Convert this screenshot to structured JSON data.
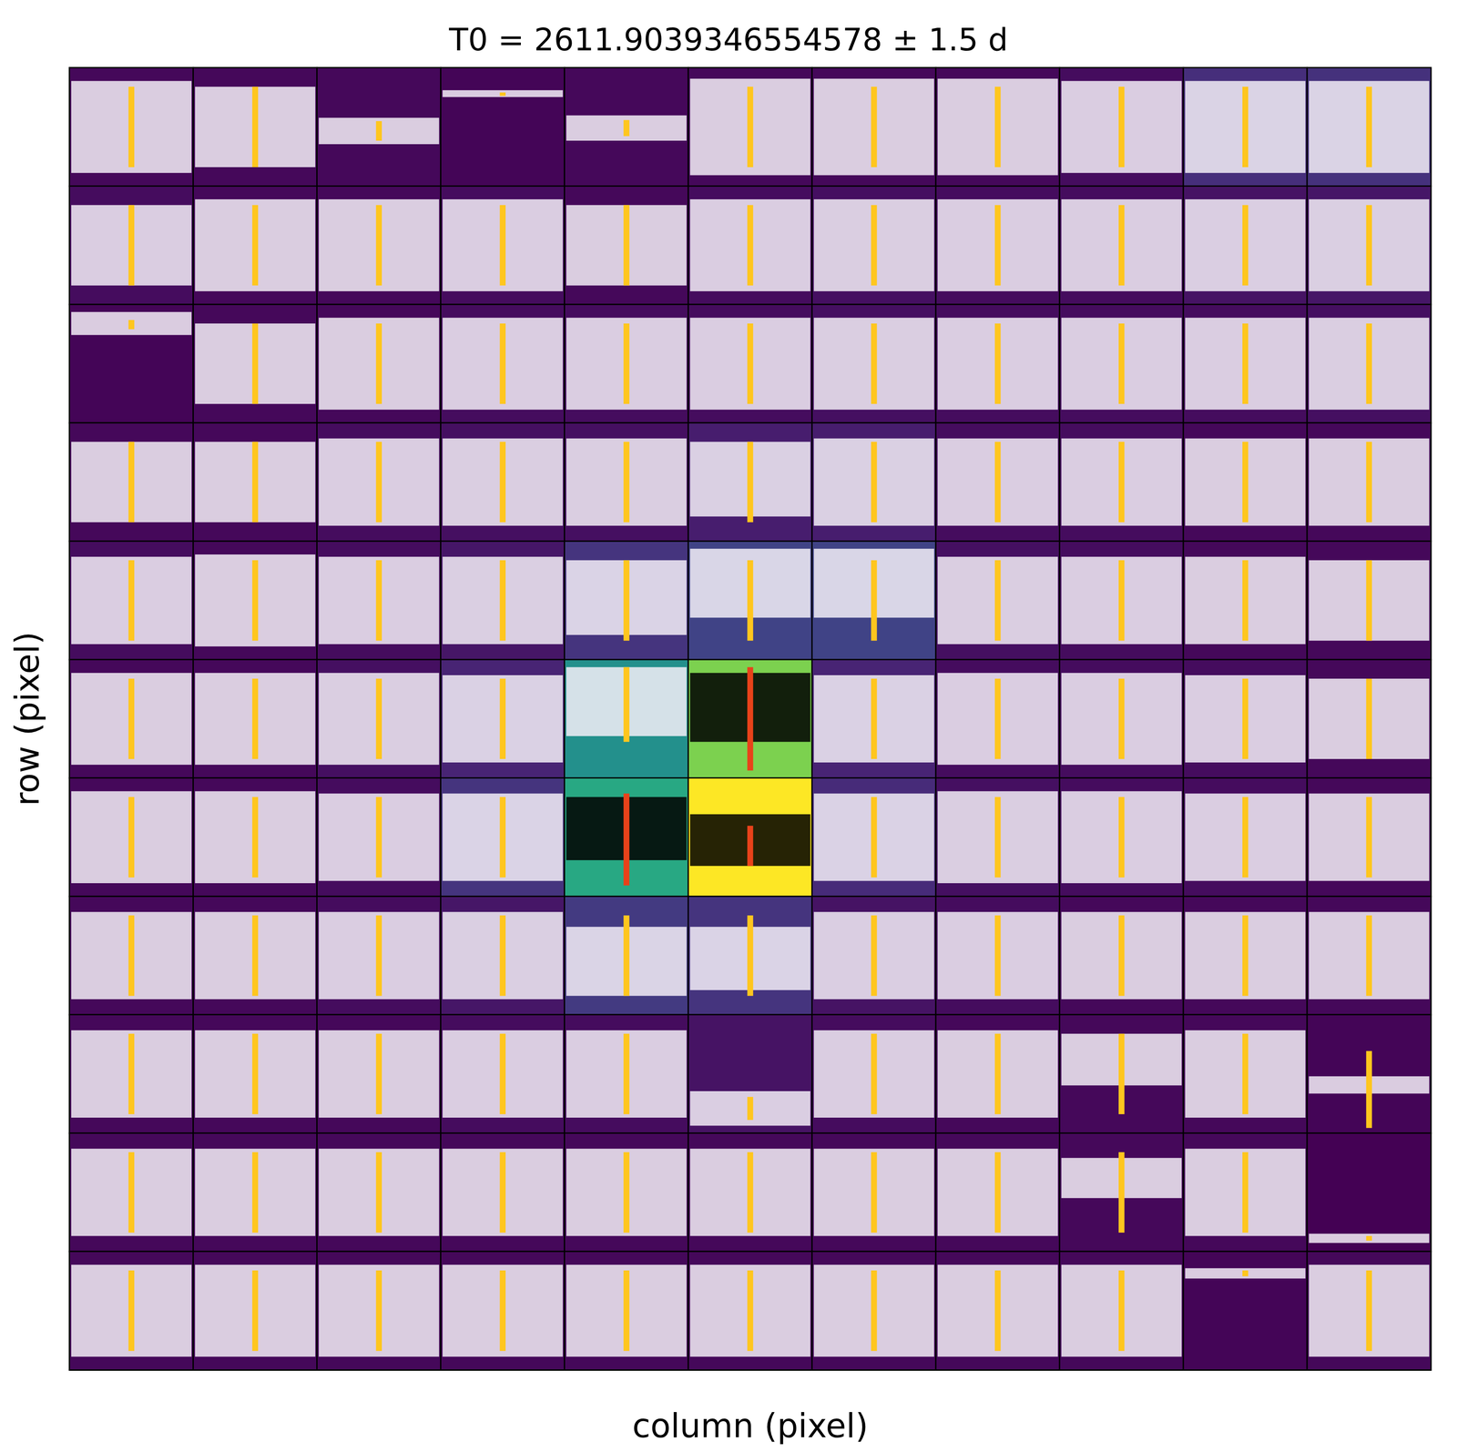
{
  "chart_data": {
    "type": "pixel_lightcurves",
    "title": "T0 = 2611.9039346554578 ± 1.5 d",
    "xlabel": "column (pixel)",
    "ylabel": "row (pixel)",
    "tick_labels": false,
    "t0": 2611.9039346554578,
    "t0_window": 1.5,
    "xlim": [
      2580.9,
      2642.9
    ],
    "ylim": [
      0,
      1
    ],
    "flux_range": [
      0,
      1
    ],
    "pixel_flux": [
      [
        0.02,
        0.02,
        0.02,
        0.01,
        0.02,
        0.02,
        0.02,
        0.02,
        0.03,
        0.13,
        0.14
      ],
      [
        0.03,
        0.02,
        0.02,
        0.03,
        0.02,
        0.03,
        0.04,
        0.03,
        0.03,
        0.05,
        0.06
      ],
      [
        0.01,
        0.02,
        0.02,
        0.03,
        0.03,
        0.03,
        0.04,
        0.03,
        0.03,
        0.03,
        0.04
      ],
      [
        0.02,
        0.02,
        0.03,
        0.04,
        0.04,
        0.08,
        0.08,
        0.03,
        0.03,
        0.02,
        0.02
      ],
      [
        0.03,
        0.02,
        0.03,
        0.06,
        0.15,
        0.2,
        0.2,
        0.04,
        0.03,
        0.02,
        0.02
      ],
      [
        0.02,
        0.02,
        0.04,
        0.1,
        0.5,
        0.8,
        0.1,
        0.03,
        0.03,
        0.03,
        0.02
      ],
      [
        0.02,
        0.02,
        0.03,
        0.15,
        0.6,
        1.0,
        0.12,
        0.04,
        0.03,
        0.03,
        0.02
      ],
      [
        0.02,
        0.02,
        0.03,
        0.06,
        0.17,
        0.15,
        0.05,
        0.03,
        0.02,
        0.02,
        0.02
      ],
      [
        0.02,
        0.02,
        0.02,
        0.03,
        0.03,
        0.05,
        0.03,
        0.02,
        0.02,
        0.02,
        0.01
      ],
      [
        0.02,
        0.02,
        0.02,
        0.02,
        0.02,
        0.02,
        0.02,
        0.02,
        0.02,
        0.02,
        0.0
      ],
      [
        0.02,
        0.02,
        0.02,
        0.02,
        0.02,
        0.02,
        0.02,
        0.02,
        0.02,
        0.01,
        0.02
      ]
    ],
    "aperture": {
      "cells": [
        [
          5,
          5
        ],
        [
          6,
          4
        ],
        [
          6,
          5
        ]
      ],
      "colors": [
        "#000000",
        "#e8421a"
      ]
    },
    "series": [
      {
        "color": "#f4f0f8",
        "values": [
          [
            [
              0.1,
              0.9
            ],
            [
              0.15,
              0.85
            ],
            [
              0.35,
              0.58
            ],
            [
              0.76,
              0.82
            ],
            [
              0.38,
              0.6
            ],
            [
              0.08,
              0.92
            ],
            [
              0.08,
              0.92
            ],
            [
              0.08,
              0.92
            ],
            [
              0.1,
              0.9
            ],
            [
              0.1,
              0.9
            ],
            [
              0.1,
              0.9
            ]
          ],
          [
            [
              0.15,
              0.85
            ],
            [
              0.1,
              0.9
            ],
            [
              0.1,
              0.9
            ],
            [
              0.1,
              0.9
            ],
            [
              0.15,
              0.85
            ],
            [
              0.1,
              0.9
            ],
            [
              0.1,
              0.9
            ],
            [
              0.1,
              0.9
            ],
            [
              0.1,
              0.9
            ],
            [
              0.1,
              0.9
            ],
            [
              0.1,
              0.9
            ]
          ],
          [
            [
              0.75,
              0.95
            ],
            [
              0.15,
              0.85
            ],
            [
              0.1,
              0.9
            ],
            [
              0.1,
              0.9
            ],
            [
              0.1,
              0.9
            ],
            [
              0.1,
              0.9
            ],
            [
              0.1,
              0.9
            ],
            [
              0.1,
              0.9
            ],
            [
              0.1,
              0.9
            ],
            [
              0.1,
              0.9
            ],
            [
              0.1,
              0.9
            ]
          ],
          [
            [
              0.15,
              0.85
            ],
            [
              0.15,
              0.85
            ],
            [
              0.12,
              0.88
            ],
            [
              0.12,
              0.88
            ],
            [
              0.12,
              0.88
            ],
            [
              0.2,
              0.85
            ],
            [
              0.12,
              0.88
            ],
            [
              0.12,
              0.88
            ],
            [
              0.12,
              0.88
            ],
            [
              0.12,
              0.88
            ],
            [
              0.12,
              0.88
            ]
          ],
          [
            [
              0.12,
              0.88
            ],
            [
              0.1,
              0.9
            ],
            [
              0.12,
              0.88
            ],
            [
              0.12,
              0.88
            ],
            [
              0.2,
              0.85
            ],
            [
              0.35,
              0.95
            ],
            [
              0.35,
              0.95
            ],
            [
              0.12,
              0.88
            ],
            [
              0.12,
              0.88
            ],
            [
              0.12,
              0.88
            ],
            [
              0.15,
              0.85
            ]
          ],
          [
            [
              0.1,
              0.9
            ],
            [
              0.1,
              0.9
            ],
            [
              0.1,
              0.9
            ],
            [
              0.12,
              0.88
            ],
            [
              0.35,
              0.95
            ],
            [
              0.3,
              0.9
            ],
            [
              0.12,
              0.88
            ],
            [
              0.1,
              0.9
            ],
            [
              0.1,
              0.9
            ],
            [
              0.12,
              0.88
            ],
            [
              0.15,
              0.85
            ]
          ],
          [
            [
              0.1,
              0.9
            ],
            [
              0.1,
              0.9
            ],
            [
              0.12,
              0.88
            ],
            [
              0.12,
              0.88
            ],
            [
              0.3,
              0.85
            ],
            [
              0.25,
              0.7
            ],
            [
              0.12,
              0.88
            ],
            [
              0.1,
              0.9
            ],
            [
              0.1,
              0.9
            ],
            [
              0.12,
              0.88
            ],
            [
              0.12,
              0.88
            ]
          ],
          [
            [
              0.12,
              0.88
            ],
            [
              0.12,
              0.88
            ],
            [
              0.12,
              0.88
            ],
            [
              0.12,
              0.88
            ],
            [
              0.15,
              0.75
            ],
            [
              0.2,
              0.75
            ],
            [
              0.12,
              0.88
            ],
            [
              0.12,
              0.88
            ],
            [
              0.12,
              0.88
            ],
            [
              0.12,
              0.88
            ],
            [
              0.12,
              0.88
            ]
          ],
          [
            [
              0.12,
              0.88
            ],
            [
              0.12,
              0.88
            ],
            [
              0.12,
              0.88
            ],
            [
              0.12,
              0.88
            ],
            [
              0.12,
              0.88
            ],
            [
              0.05,
              0.35
            ],
            [
              0.12,
              0.88
            ],
            [
              0.12,
              0.88
            ],
            [
              0.4,
              0.85
            ],
            [
              0.12,
              0.88
            ],
            [
              0.33,
              0.48
            ]
          ],
          [
            [
              0.12,
              0.88
            ],
            [
              0.12,
              0.88
            ],
            [
              0.12,
              0.88
            ],
            [
              0.12,
              0.88
            ],
            [
              0.12,
              0.88
            ],
            [
              0.12,
              0.88
            ],
            [
              0.12,
              0.88
            ],
            [
              0.12,
              0.88
            ],
            [
              0.45,
              0.8
            ],
            [
              0.12,
              0.88
            ],
            [
              0.06,
              0.14
            ]
          ],
          [
            [
              0.1,
              0.9
            ],
            [
              0.1,
              0.9
            ],
            [
              0.1,
              0.9
            ],
            [
              0.1,
              0.9
            ],
            [
              0.1,
              0.9
            ],
            [
              0.1,
              0.9
            ],
            [
              0.1,
              0.9
            ],
            [
              0.1,
              0.9
            ],
            [
              0.1,
              0.9
            ],
            [
              0.78,
              0.87
            ],
            [
              0.1,
              0.9
            ]
          ]
        ]
      },
      {
        "color": "#ffc61e",
        "values": [
          [
            [
              0.15,
              0.85
            ],
            [
              0.15,
              0.85
            ],
            [
              0.38,
              0.55
            ],
            [
              0.77,
              0.8
            ],
            [
              0.42,
              0.56
            ],
            [
              0.15,
              0.85
            ],
            [
              0.15,
              0.85
            ],
            [
              0.15,
              0.85
            ],
            [
              0.15,
              0.85
            ],
            [
              0.15,
              0.85
            ],
            [
              0.15,
              0.85
            ]
          ],
          [
            [
              0.15,
              0.85
            ],
            [
              0.15,
              0.85
            ],
            [
              0.15,
              0.85
            ],
            [
              0.15,
              0.85
            ],
            [
              0.15,
              0.85
            ],
            [
              0.15,
              0.85
            ],
            [
              0.15,
              0.85
            ],
            [
              0.15,
              0.85
            ],
            [
              0.15,
              0.85
            ],
            [
              0.15,
              0.85
            ],
            [
              0.15,
              0.85
            ]
          ],
          [
            [
              0.8,
              0.88
            ],
            [
              0.15,
              0.85
            ],
            [
              0.15,
              0.85
            ],
            [
              0.15,
              0.85
            ],
            [
              0.15,
              0.85
            ],
            [
              0.15,
              0.85
            ],
            [
              0.15,
              0.85
            ],
            [
              0.15,
              0.85
            ],
            [
              0.15,
              0.85
            ],
            [
              0.15,
              0.85
            ],
            [
              0.15,
              0.85
            ]
          ],
          [
            [
              0.15,
              0.85
            ],
            [
              0.15,
              0.85
            ],
            [
              0.15,
              0.85
            ],
            [
              0.15,
              0.85
            ],
            [
              0.15,
              0.85
            ],
            [
              0.15,
              0.85
            ],
            [
              0.15,
              0.85
            ],
            [
              0.15,
              0.85
            ],
            [
              0.15,
              0.85
            ],
            [
              0.15,
              0.85
            ],
            [
              0.15,
              0.85
            ]
          ],
          [
            [
              0.15,
              0.85
            ],
            [
              0.15,
              0.85
            ],
            [
              0.15,
              0.85
            ],
            [
              0.15,
              0.85
            ],
            [
              0.15,
              0.85
            ],
            [
              0.15,
              0.85
            ],
            [
              0.15,
              0.85
            ],
            [
              0.15,
              0.85
            ],
            [
              0.15,
              0.85
            ],
            [
              0.15,
              0.85
            ],
            [
              0.15,
              0.85
            ]
          ],
          [
            [
              0.15,
              0.85
            ],
            [
              0.15,
              0.85
            ],
            [
              0.15,
              0.85
            ],
            [
              0.15,
              0.85
            ],
            [
              0.3,
              0.95
            ],
            [
              0.05,
              0.95
            ],
            [
              0.15,
              0.85
            ],
            [
              0.15,
              0.85
            ],
            [
              0.15,
              0.85
            ],
            [
              0.15,
              0.85
            ],
            [
              0.15,
              0.85
            ]
          ],
          [
            [
              0.15,
              0.85
            ],
            [
              0.15,
              0.85
            ],
            [
              0.15,
              0.85
            ],
            [
              0.15,
              0.85
            ],
            [
              0.08,
              0.88
            ],
            [
              0.25,
              0.6
            ],
            [
              0.15,
              0.85
            ],
            [
              0.15,
              0.85
            ],
            [
              0.15,
              0.85
            ],
            [
              0.15,
              0.85
            ],
            [
              0.15,
              0.85
            ]
          ],
          [
            [
              0.15,
              0.85
            ],
            [
              0.15,
              0.85
            ],
            [
              0.15,
              0.85
            ],
            [
              0.15,
              0.85
            ],
            [
              0.15,
              0.85
            ],
            [
              0.15,
              0.85
            ],
            [
              0.15,
              0.85
            ],
            [
              0.15,
              0.85
            ],
            [
              0.15,
              0.85
            ],
            [
              0.15,
              0.85
            ],
            [
              0.15,
              0.85
            ]
          ],
          [
            [
              0.15,
              0.85
            ],
            [
              0.15,
              0.85
            ],
            [
              0.15,
              0.85
            ],
            [
              0.15,
              0.85
            ],
            [
              0.15,
              0.85
            ],
            [
              0.1,
              0.3
            ],
            [
              0.15,
              0.85
            ],
            [
              0.15,
              0.85
            ],
            [
              0.15,
              0.85
            ],
            [
              0.15,
              0.85
            ],
            [
              0.03,
              0.7
            ]
          ],
          [
            [
              0.15,
              0.85
            ],
            [
              0.15,
              0.85
            ],
            [
              0.15,
              0.85
            ],
            [
              0.15,
              0.85
            ],
            [
              0.15,
              0.85
            ],
            [
              0.15,
              0.85
            ],
            [
              0.15,
              0.85
            ],
            [
              0.15,
              0.85
            ],
            [
              0.15,
              0.85
            ],
            [
              0.15,
              0.85
            ],
            [
              0.08,
              0.12
            ]
          ],
          [
            [
              0.15,
              0.85
            ],
            [
              0.15,
              0.85
            ],
            [
              0.15,
              0.85
            ],
            [
              0.15,
              0.85
            ],
            [
              0.15,
              0.85
            ],
            [
              0.15,
              0.85
            ],
            [
              0.15,
              0.85
            ],
            [
              0.15,
              0.85
            ],
            [
              0.15,
              0.85
            ],
            [
              0.8,
              0.85
            ],
            [
              0.15,
              0.85
            ]
          ]
        ]
      }
    ]
  }
}
